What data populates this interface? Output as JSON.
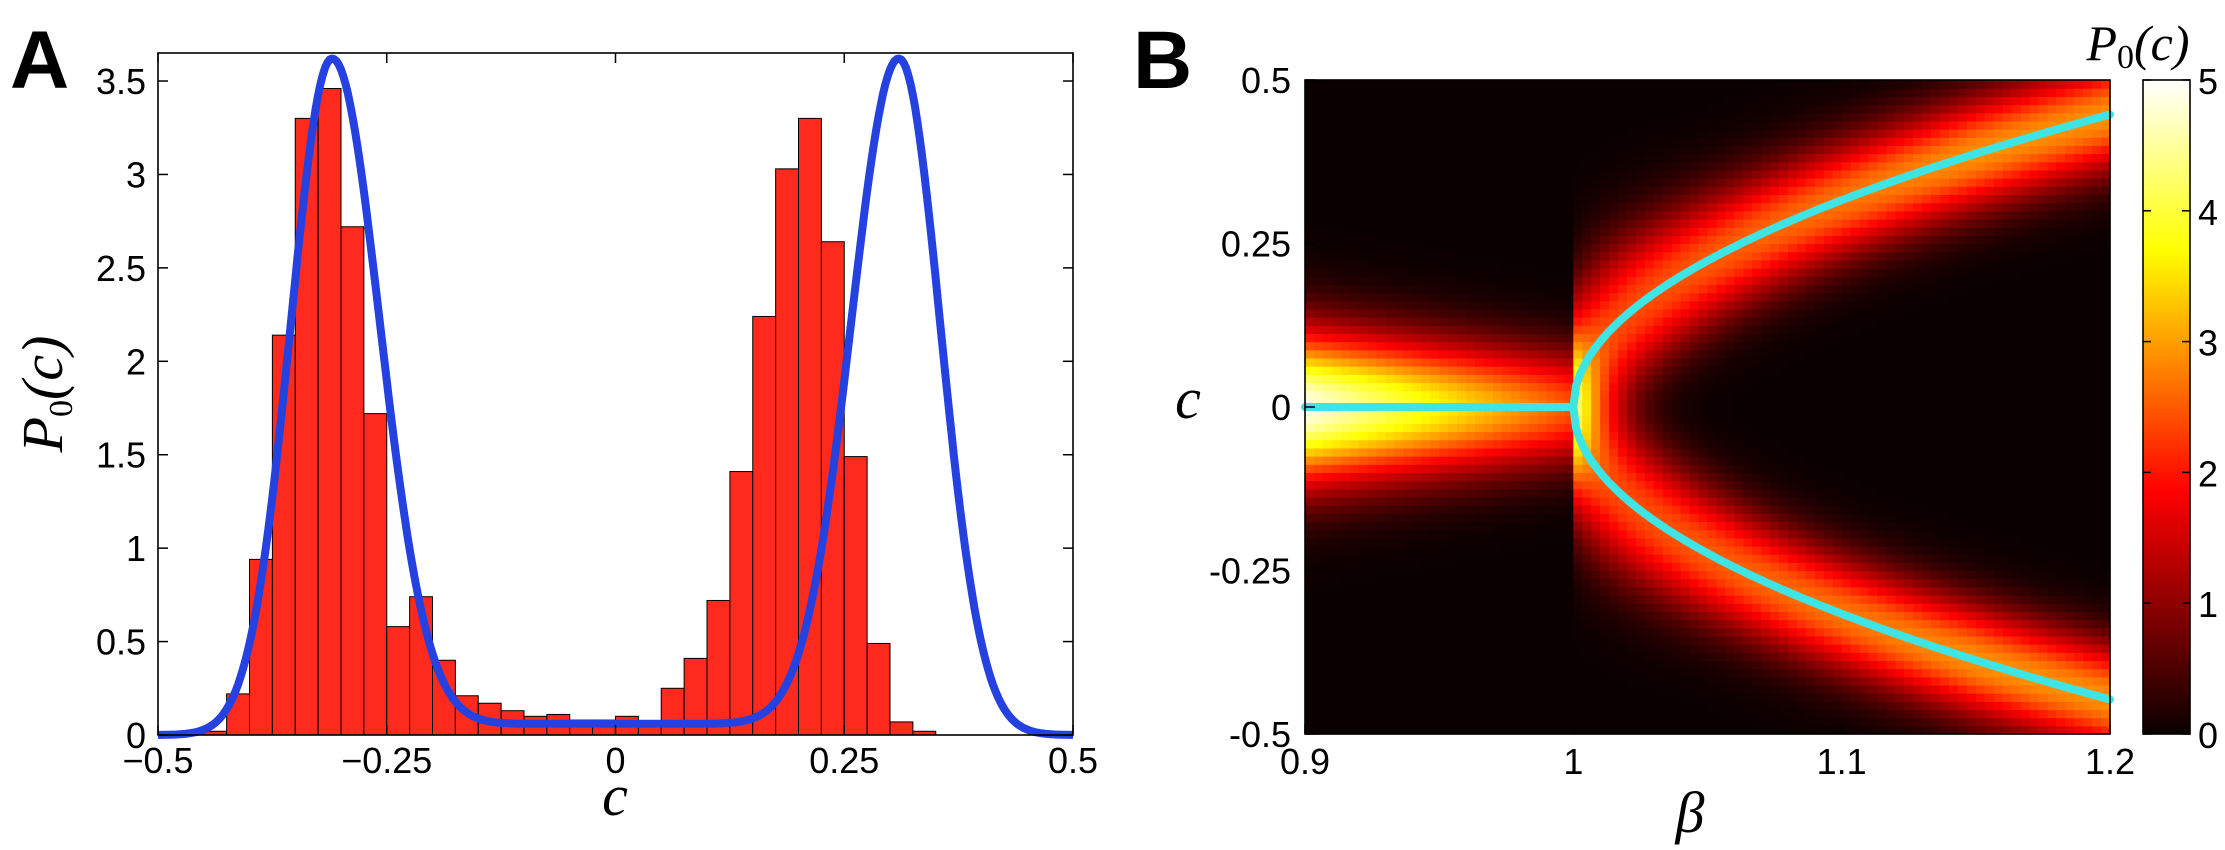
{
  "chart_data": [
    {
      "panel_label": "A",
      "type": "bar",
      "xlabel": "c",
      "ylabel": {
        "main": "P",
        "sub": "0",
        "arg": "(c)"
      },
      "xlim": [
        -0.5,
        0.5
      ],
      "ylim": [
        0,
        3.65
      ],
      "xticks": [
        -0.5,
        -0.25,
        0,
        0.25,
        0.5
      ],
      "xtick_labels": [
        "−0.5",
        "−0.25",
        "0",
        "0.25",
        "0.5"
      ],
      "yticks": [
        0,
        0.5,
        1,
        1.5,
        2,
        2.5,
        3,
        3.5
      ],
      "ytick_labels": [
        "0",
        "0.5",
        "1",
        "1.5",
        "2",
        "2.5",
        "3",
        "3.5"
      ],
      "histogram": {
        "color": "#ff2a1e",
        "bin_width": 0.025,
        "bin_left_edges": [
          -0.45,
          -0.425,
          -0.4,
          -0.375,
          -0.35,
          -0.325,
          -0.3,
          -0.275,
          -0.25,
          -0.225,
          -0.2,
          -0.175,
          -0.15,
          -0.125,
          -0.1,
          -0.075,
          -0.05,
          -0.025,
          0,
          0.025,
          0.05,
          0.075,
          0.1,
          0.125,
          0.15,
          0.175,
          0.2,
          0.225,
          0.25,
          0.275,
          0.3,
          0.325,
          0.35,
          0.375,
          0.4,
          0.425
        ],
        "values": [
          0.02,
          0.22,
          0.94,
          2.14,
          3.3,
          3.46,
          2.72,
          1.72,
          0.58,
          0.74,
          0.4,
          0.21,
          0.17,
          0.13,
          0.1,
          0.11,
          0.08,
          0.08,
          0.1,
          0.06,
          0.25,
          0.41,
          0.72,
          1.41,
          2.24,
          3.03,
          3.3,
          2.64,
          1.49,
          0.49,
          0.07,
          0.02,
          0,
          0,
          0,
          0
        ]
      },
      "fit_curve": {
        "color": "#2542e0",
        "description": "symmetric bimodal density",
        "peak_positions": [
          -0.31,
          0.31
        ],
        "peak_value": 3.62,
        "center_value": 0.06
      }
    },
    {
      "panel_label": "B",
      "type": "heatmap",
      "xlabel": "β",
      "ylabel": "c",
      "xlim": [
        0.9,
        1.2
      ],
      "ylim": [
        -0.5,
        0.5
      ],
      "xticks": [
        0.9,
        1.0,
        1.1,
        1.2
      ],
      "xtick_labels": [
        "0.9",
        "1",
        "1.1",
        "1.2"
      ],
      "yticks": [
        0.5,
        0.25,
        0,
        -0.25,
        -0.5
      ],
      "ytick_labels": [
        "0.5",
        "0.25",
        "0",
        "-0.25",
        "-0.5"
      ],
      "colorbar": {
        "title": {
          "main": "P",
          "sub": "0",
          "arg": "(c)"
        },
        "range": [
          0,
          5
        ],
        "ticks": [
          0,
          1,
          2,
          3,
          4,
          5
        ],
        "tick_labels": [
          "0",
          "1",
          "2",
          "3",
          "4",
          "5"
        ],
        "colormap": "hot"
      },
      "branch_curve": {
        "color": "#3fe4e4",
        "description": "c = 0 for β < 1; c = ± sqrt(β − 1) branches for β ≥ 1",
        "bifurcation_beta": 1.0,
        "branch_values_at": {
          "beta": [
            1.0,
            1.05,
            1.1,
            1.15,
            1.2
          ],
          "c": [
            0,
            0.2,
            0.32,
            0.39,
            0.45
          ]
        }
      }
    }
  ]
}
